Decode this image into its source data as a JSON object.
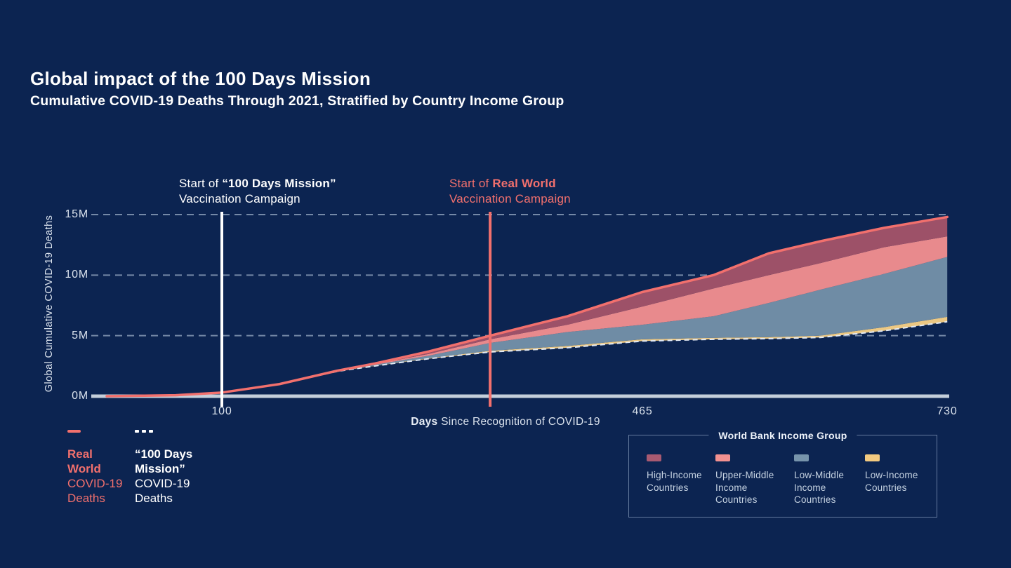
{
  "header": {
    "title": "Global impact of the 100 Days Mission",
    "subtitle": "Cumulative COVID-19 Deaths Through 2021, Stratified by Country Income Group"
  },
  "annotations": {
    "mission": {
      "prefix": "Start of ",
      "bold": "“100 Days Mission”",
      "line2": "Vaccination Campaign"
    },
    "real": {
      "prefix": "Start of ",
      "bold": "Real World",
      "line2": "Vaccination Campaign"
    }
  },
  "axis_caption": {
    "bold": "Days",
    "rest": " Since Recognition of COVID-19"
  },
  "key": {
    "real_world": {
      "bold": "Real\nWorld",
      "rest": "COVID-19\nDeaths"
    },
    "mission": {
      "bold": "“100 Days\nMission”",
      "rest": "COVID-19\nDeaths"
    }
  },
  "income_legend": {
    "title": "World Bank Income Group",
    "groups": [
      {
        "label": "High-Income Countries",
        "color": "#a85a71"
      },
      {
        "label": "Upper-Middle Income Countries",
        "color": "#f29190"
      },
      {
        "label": "Low-Middle Income Countries",
        "color": "#7794ab"
      },
      {
        "label": "Low-Income Countries",
        "color": "#f3ca80"
      }
    ]
  },
  "colors": {
    "background": "#0c2451",
    "accent_red": "#f2706d",
    "axis_line": "#c5cfdb",
    "grid_line": "#aebfd6",
    "marker_white": "#ffffff"
  },
  "chart_data": {
    "type": "area",
    "title": "Global impact of the 100 Days Mission",
    "xlabel": "Days Since Recognition of COVID-19",
    "ylabel": "Global Cumulative COVID-19 Deaths",
    "xlim": [
      0,
      730
    ],
    "ylim": [
      0,
      15
    ],
    "grid": "horizontal-dashed",
    "yticks": [
      {
        "value": 0,
        "label": "0M"
      },
      {
        "value": 5,
        "label": "5M"
      },
      {
        "value": 10,
        "label": "10M"
      },
      {
        "value": 15,
        "label": "15M"
      }
    ],
    "xticks": [
      {
        "value": 100,
        "label": "100"
      },
      {
        "value": 465,
        "label": "465"
      },
      {
        "value": 730,
        "label": "730"
      }
    ],
    "x": [
      0,
      60,
      100,
      150,
      200,
      233,
      280,
      333,
      400,
      465,
      527,
      575,
      620,
      675,
      730
    ],
    "series": [
      {
        "name": "“100 Days Mission” COVID-19 Deaths",
        "role": "baseline",
        "style": "dashed-line",
        "color": "#e3eaf4",
        "values": [
          0,
          0.08,
          0.3,
          1.0,
          2.05,
          2.5,
          3.1,
          3.65,
          4.0,
          4.55,
          4.7,
          4.75,
          4.85,
          5.4,
          6.15
        ]
      },
      {
        "name": "Low-Income Countries",
        "role": "band-top",
        "style": "area",
        "color": "#ecc883",
        "values": [
          0,
          0.08,
          0.3,
          1.0,
          2.06,
          2.52,
          3.15,
          3.75,
          4.15,
          4.7,
          4.82,
          4.88,
          5.0,
          5.7,
          6.55
        ]
      },
      {
        "name": "Low-Middle Income Countries",
        "role": "band-top",
        "style": "area",
        "color": "#6f8ca5",
        "values": [
          0,
          0.08,
          0.3,
          1.0,
          2.08,
          2.6,
          3.35,
          4.4,
          5.3,
          5.9,
          6.6,
          7.7,
          8.8,
          10.1,
          11.5
        ]
      },
      {
        "name": "Upper-Middle Income Countries",
        "role": "band-top",
        "style": "area",
        "color": "#e88a8d",
        "values": [
          0,
          0.08,
          0.3,
          1.0,
          2.1,
          2.65,
          3.5,
          4.7,
          5.9,
          7.4,
          8.9,
          10.0,
          11.0,
          12.3,
          13.2
        ]
      },
      {
        "name": "High-Income Countries",
        "role": "band-top",
        "style": "area",
        "color": "#9d5168",
        "values": [
          0,
          0.08,
          0.3,
          1.0,
          2.1,
          2.7,
          3.7,
          5.0,
          6.6,
          8.6,
          10.0,
          11.8,
          12.8,
          13.9,
          14.8
        ]
      },
      {
        "name": "Real World COVID-19 Deaths",
        "role": "line",
        "style": "solid-line",
        "color": "#f2706d",
        "values": [
          0,
          0.08,
          0.3,
          1.0,
          2.1,
          2.7,
          3.7,
          5.0,
          6.6,
          8.6,
          10.0,
          11.8,
          12.8,
          13.9,
          14.8
        ]
      }
    ],
    "markers": [
      {
        "day": 100,
        "color": "#ffffff",
        "label": "Start of “100 Days Mission” Vaccination Campaign"
      },
      {
        "day": 333,
        "color": "#f2706d",
        "label": "Start of Real World Vaccination Campaign"
      }
    ],
    "legend_position": "bottom"
  }
}
